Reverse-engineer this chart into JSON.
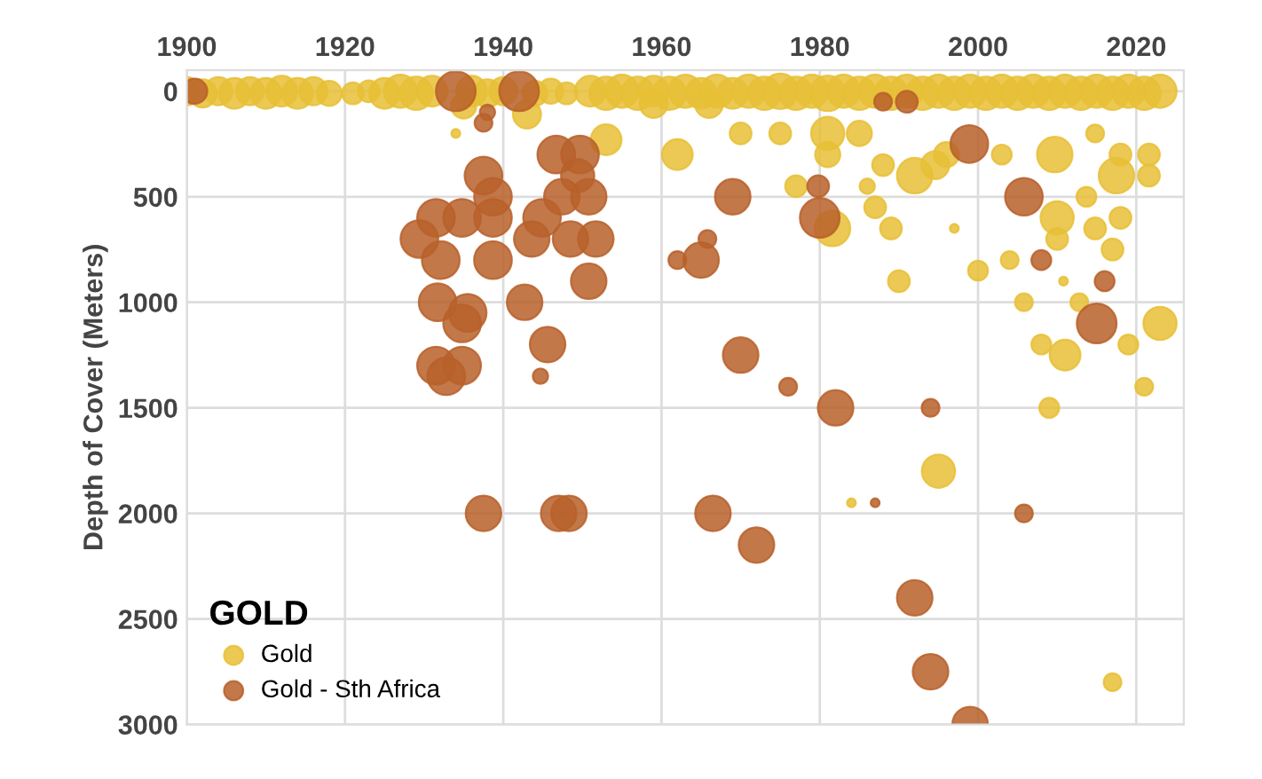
{
  "chart_data": {
    "type": "bubble",
    "ylabel": "Depth of Cover (Meters)",
    "legend_title": "GOLD",
    "legend": "bottom left",
    "grid": true,
    "xlim": [
      1900,
      2026
    ],
    "xticks": [
      1900,
      1920,
      1940,
      1960,
      1980,
      2000,
      2020
    ],
    "ylim": [
      3000,
      -100
    ],
    "yticks": [
      0,
      500,
      1000,
      1500,
      2000,
      2500,
      3000
    ],
    "series": [
      {
        "name": "Gold",
        "color": "#e8bf36",
        "x": [
          1900,
          1902,
          1904,
          1906,
          1908,
          1910,
          1912,
          1914,
          1916,
          1918,
          1921,
          1923,
          1925,
          1927,
          1929,
          1931,
          1936,
          1938,
          1940,
          1944,
          1946,
          1948,
          1951,
          1953,
          1955,
          1957,
          1959,
          1961,
          1963,
          1965,
          1967,
          1969,
          1971,
          1973,
          1975,
          1977,
          1979,
          1981,
          1983,
          1985,
          1987,
          1989,
          1991,
          1993,
          1995,
          1997,
          1999,
          2001,
          2003,
          2005,
          2007,
          2009,
          2011,
          2013,
          2015,
          2017,
          2019,
          2021,
          2023,
          1959,
          1966,
          1935,
          1934,
          1943,
          1953,
          1962,
          1970,
          1975,
          1981,
          1981,
          1985,
          1988,
          1992,
          1994.6,
          1996,
          1986,
          1987,
          1989,
          1997,
          1981.6,
          1977,
          1990,
          2000,
          2004,
          2003,
          2009.7,
          2010,
          2010,
          2014.8,
          2017,
          2018,
          2013.7,
          2021.6,
          2017.5,
          2018,
          2021.6,
          2010.8,
          2005.8,
          2012.8,
          2011,
          2008,
          2019,
          2023,
          2021,
          2014.8,
          2009,
          1995,
          1984,
          2017
        ],
        "values": [
          0,
          10,
          0,
          10,
          0,
          10,
          0,
          10,
          0,
          10,
          10,
          0,
          10,
          0,
          10,
          0,
          0,
          10,
          0,
          10,
          0,
          10,
          0,
          10,
          0,
          10,
          0,
          10,
          0,
          10,
          0,
          10,
          0,
          10,
          0,
          10,
          0,
          10,
          0,
          10,
          0,
          10,
          0,
          10,
          0,
          10,
          0,
          10,
          0,
          10,
          0,
          10,
          0,
          10,
          0,
          10,
          0,
          10,
          0,
          60,
          60,
          70,
          200,
          110,
          230,
          300,
          200,
          200,
          200,
          300,
          200,
          350,
          400,
          350,
          300,
          450,
          550,
          650,
          650,
          650,
          450,
          900,
          850,
          800,
          300,
          300,
          600,
          700,
          650,
          750,
          600,
          500,
          400,
          400,
          300,
          300,
          900,
          1000,
          1000,
          1250,
          1200,
          1200,
          1100,
          1400,
          200,
          1500,
          1800,
          1950,
          2800
        ],
        "sizes": [
          0.5,
          0.5,
          0.5,
          0.6,
          0.5,
          0.6,
          0.6,
          0.6,
          0.5,
          0.4,
          0.3,
          0.3,
          0.6,
          0.7,
          0.7,
          0.6,
          0.6,
          0.5,
          0.5,
          0.4,
          0.4,
          0.3,
          0.6,
          0.7,
          0.7,
          0.7,
          0.6,
          0.7,
          0.7,
          0.6,
          0.7,
          0.6,
          0.7,
          0.7,
          0.8,
          0.7,
          0.7,
          0.8,
          0.7,
          0.7,
          0.7,
          0.7,
          0.7,
          0.7,
          0.7,
          0.7,
          0.7,
          0.7,
          0.7,
          0.7,
          0.7,
          0.7,
          0.7,
          0.7,
          0.7,
          0.7,
          0.7,
          0.7,
          0.7,
          0.5,
          0.5,
          0.4,
          0.05,
          0.5,
          0.6,
          0.6,
          0.3,
          0.3,
          0.7,
          0.4,
          0.4,
          0.3,
          0.8,
          0.5,
          0.4,
          0.15,
          0.3,
          0.3,
          0.05,
          0.8,
          0.3,
          0.3,
          0.25,
          0.2,
          0.25,
          0.8,
          0.7,
          0.3,
          0.3,
          0.3,
          0.3,
          0.25,
          0.3,
          0.8,
          0.3,
          0.3,
          0.05,
          0.2,
          0.2,
          0.6,
          0.25,
          0.25,
          0.7,
          0.2,
          0.2,
          0.25,
          0.7,
          0.05,
          0.2
        ]
      },
      {
        "name": "Gold - Sth Africa",
        "color": "#b8602a",
        "x": [
          1901,
          1934,
          1942,
          1938,
          1937.5,
          1938.7,
          1938.7,
          1934.8,
          1931.5,
          1929.4,
          1932.1,
          1938.7,
          1931.7,
          1935.5,
          1934.8,
          1931.5,
          1934.8,
          1932.8,
          1942.7,
          1945.6,
          1944.7,
          1946.7,
          1949.7,
          1949.4,
          1947.4,
          1950.8,
          1944.9,
          1943.6,
          1948.5,
          1951.7,
          1950.8,
          1937.5,
          1962,
          1965,
          1965.8,
          1937.5,
          1948.3,
          1947,
          1966.5,
          1969,
          1979.8,
          1980,
          1998.9,
          2005.8,
          2008,
          2016,
          2015,
          1970,
          1976,
          1982,
          1994,
          1987,
          1972,
          2005.8,
          1992,
          1994,
          1999,
          1988,
          1991
        ],
        "values": [
          0,
          0,
          0,
          100,
          400,
          500,
          600,
          600,
          600,
          700,
          800,
          800,
          1000,
          1050,
          1100,
          1300,
          1300,
          1350,
          1000,
          1200,
          1350,
          300,
          300,
          400,
          500,
          500,
          600,
          700,
          700,
          700,
          900,
          150,
          800,
          800,
          700,
          2000,
          2000,
          2000,
          2000,
          500,
          450,
          600,
          250,
          500,
          800,
          900,
          1100,
          1250,
          1400,
          1500,
          1500,
          1950,
          2150,
          2000,
          2400,
          2750,
          3000,
          50,
          50
        ],
        "sizes": [
          0.4,
          1,
          1,
          0.15,
          0.9,
          0.9,
          0.9,
          0.9,
          0.9,
          0.9,
          0.9,
          0.9,
          0.9,
          0.9,
          0.9,
          0.9,
          0.9,
          0.9,
          0.8,
          0.8,
          0.15,
          0.9,
          0.9,
          0.7,
          0.8,
          0.8,
          0.9,
          0.8,
          0.8,
          0.8,
          0.8,
          0.2,
          0.2,
          0.8,
          0.2,
          0.8,
          0.8,
          0.8,
          0.8,
          0.8,
          0.3,
          1,
          0.9,
          0.9,
          0.25,
          0.25,
          1,
          0.8,
          0.2,
          0.8,
          0.2,
          0.05,
          0.8,
          0.2,
          0.8,
          0.8,
          0.8,
          0.2,
          0.3
        ]
      }
    ]
  }
}
